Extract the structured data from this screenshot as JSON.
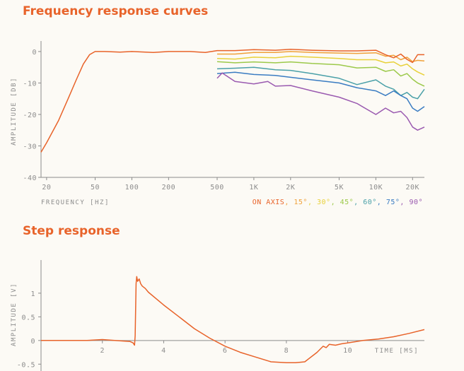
{
  "colors": {
    "orange": "#e8632a",
    "axis": "#8c8c8c",
    "background": "#fcfaf5"
  },
  "chart_data": [
    {
      "type": "line",
      "title": "Frequency response curves",
      "xlabel": "FREQUENCY [HZ]",
      "ylabel": "AMPLITUDE [DB]",
      "xscale": "log",
      "xlim": [
        18,
        25000
      ],
      "ylim": [
        -40,
        2
      ],
      "x_ticks": [
        20,
        50,
        100,
        200,
        500,
        1000,
        2000,
        5000,
        10000,
        20000
      ],
      "x_tick_labels": [
        "20",
        "50",
        "100",
        "200",
        "500",
        "1K",
        "2K",
        "5K",
        "10K",
        "20K"
      ],
      "y_ticks": [
        0,
        -10,
        -20,
        -30,
        -40
      ],
      "y_tick_labels": [
        "0",
        "-10",
        "-20",
        "-30",
        "-40"
      ],
      "legend_position": "bottom-right",
      "series": [
        {
          "name": "ON AXIS",
          "color": "#e8632a",
          "x": [
            18,
            20,
            25,
            30,
            35,
            40,
            45,
            50,
            60,
            80,
            100,
            150,
            200,
            300,
            400,
            500,
            700,
            1000,
            1500,
            2000,
            3000,
            5000,
            7000,
            10000,
            12000,
            14000,
            16000,
            18000,
            20000,
            22000,
            25000
          ],
          "y": [
            -32,
            -29,
            -22,
            -15,
            -9,
            -4,
            -1,
            0,
            0,
            -0.2,
            0,
            -0.3,
            0,
            0,
            -0.3,
            0.3,
            0.3,
            0.6,
            0.4,
            0.7,
            0.4,
            0.2,
            0.2,
            0.4,
            -1,
            -2,
            -0.8,
            -2.5,
            -3.5,
            -1,
            -1
          ]
        },
        {
          "name": "15°",
          "color": "#f0a13a",
          "x": [
            500,
            700,
            1000,
            1500,
            2000,
            3000,
            5000,
            7000,
            10000,
            12000,
            14000,
            16000,
            18000,
            20000,
            22000,
            25000
          ],
          "y": [
            -0.8,
            -0.8,
            -0.3,
            -0.3,
            0,
            -0.3,
            -0.5,
            -0.6,
            -0.4,
            -1.5,
            -1.2,
            -2.6,
            -1.8,
            -3.2,
            -2.8,
            -3.0
          ]
        },
        {
          "name": "30°",
          "color": "#e8d13a",
          "x": [
            500,
            700,
            1000,
            1500,
            2000,
            3000,
            5000,
            7000,
            10000,
            12000,
            14000,
            16000,
            18000,
            20000,
            22000,
            25000
          ],
          "y": [
            -2.2,
            -2.4,
            -1.8,
            -2.0,
            -1.5,
            -1.8,
            -2.2,
            -2.6,
            -2.6,
            -3.6,
            -3.3,
            -4.6,
            -4.0,
            -5.5,
            -6.5,
            -7.5
          ]
        },
        {
          "name": "45°",
          "color": "#9cc94a",
          "x": [
            500,
            700,
            1000,
            1500,
            2000,
            3000,
            5000,
            7000,
            10000,
            12000,
            14000,
            16000,
            18000,
            20000,
            22000,
            25000
          ],
          "y": [
            -3.2,
            -3.6,
            -3.3,
            -3.6,
            -3.3,
            -3.8,
            -4.2,
            -5.2,
            -5.0,
            -6.3,
            -5.8,
            -7.8,
            -7.0,
            -8.8,
            -10,
            -11
          ]
        },
        {
          "name": "60°",
          "color": "#4aa0a8",
          "x": [
            500,
            700,
            1000,
            1500,
            2000,
            3000,
            5000,
            7000,
            10000,
            12000,
            14000,
            16000,
            18000,
            20000,
            22000,
            25000
          ],
          "y": [
            -5.5,
            -5.3,
            -5.0,
            -5.8,
            -6.0,
            -7.0,
            -8.5,
            -10.5,
            -9.0,
            -11,
            -12,
            -14,
            -13,
            -14.5,
            -15,
            -12
          ]
        },
        {
          "name": "75°",
          "color": "#3a7cc2",
          "x": [
            500,
            700,
            1000,
            1500,
            2000,
            3000,
            5000,
            7000,
            10000,
            12000,
            14000,
            16000,
            18000,
            20000,
            22000,
            25000
          ],
          "y": [
            -7.0,
            -6.6,
            -7.3,
            -7.6,
            -8.2,
            -9.0,
            -10,
            -11.5,
            -12.5,
            -14,
            -12.5,
            -14,
            -15,
            -18,
            -19,
            -17.5
          ]
        },
        {
          "name": "90°",
          "color": "#9a5ab0",
          "x": [
            500,
            550,
            700,
            1000,
            1300,
            1500,
            2000,
            3000,
            5000,
            7000,
            10000,
            12000,
            14000,
            16000,
            18000,
            20000,
            22000,
            25000
          ],
          "y": [
            -8.5,
            -6.8,
            -9.5,
            -10.3,
            -9.5,
            -11,
            -10.8,
            -12.5,
            -14.5,
            -16.5,
            -20,
            -18,
            -19.5,
            -19,
            -21,
            -24,
            -25,
            -24
          ]
        }
      ]
    },
    {
      "type": "line",
      "title": "Step response",
      "xlabel": "TIME [MS]",
      "ylabel": "AMPLITUDE [V]",
      "xlim": [
        0,
        12.5
      ],
      "ylim": [
        -0.6,
        1.7
      ],
      "x_ticks": [
        2,
        4,
        6,
        8,
        10
      ],
      "x_tick_labels": [
        "2",
        "4",
        "6",
        "8",
        "10"
      ],
      "y_ticks": [
        1,
        0.5,
        0,
        -0.5
      ],
      "y_tick_labels": [
        "1",
        "0.5",
        "0",
        "-0.5"
      ],
      "series": [
        {
          "name": "",
          "color": "#e8632a",
          "x": [
            0,
            1.5,
            2,
            2.4,
            2.9,
            3.0,
            3.05,
            3.07,
            3.1,
            3.12,
            3.15,
            3.2,
            3.25,
            3.3,
            3.4,
            3.5,
            4,
            4.5,
            5,
            5.5,
            6,
            6.5,
            7,
            7.5,
            8,
            8.3,
            8.6,
            9,
            9.2,
            9.3,
            9.4,
            9.6,
            9.8,
            10,
            10.5,
            11,
            11.5,
            12,
            12.5
          ],
          "y": [
            0,
            0,
            0.02,
            0,
            -0.02,
            -0.05,
            -0.1,
            0.1,
            1.2,
            1.35,
            1.25,
            1.3,
            1.2,
            1.15,
            1.1,
            1.02,
            0.75,
            0.5,
            0.25,
            0.05,
            -0.12,
            -0.25,
            -0.35,
            -0.45,
            -0.47,
            -0.47,
            -0.45,
            -0.25,
            -0.12,
            -0.15,
            -0.08,
            -0.1,
            -0.07,
            -0.05,
            0,
            0.03,
            0.08,
            0.15,
            0.23
          ]
        }
      ]
    }
  ]
}
